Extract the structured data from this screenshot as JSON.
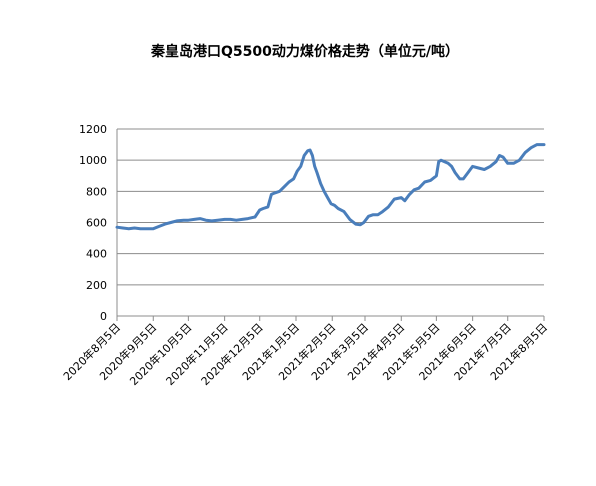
{
  "chart_data": {
    "type": "line",
    "title": "秦皇岛港口Q5500动力煤价格走势（单位元/吨）",
    "xlabel": "",
    "ylabel": "",
    "ylim": [
      0,
      1200
    ],
    "yticks": [
      0,
      200,
      400,
      600,
      800,
      1000,
      1200
    ],
    "xlim": [
      "2020-08-05",
      "2021-08-05"
    ],
    "x_tick_labels": [
      "2020年8月5日",
      "2020年9月5日",
      "2020年10月5日",
      "2020年11月5日",
      "2020年12月5日",
      "2021年1月5日",
      "2021年2月5日",
      "2021年3月5日",
      "2021年4月5日",
      "2021年5月5日",
      "2021年6月5日",
      "2021年7月5日",
      "2021年8月5日"
    ],
    "x_tick_dates": [
      "2020-08-05",
      "2020-09-05",
      "2020-10-05",
      "2020-11-05",
      "2020-12-05",
      "2021-01-05",
      "2021-02-05",
      "2021-03-05",
      "2021-04-05",
      "2021-05-05",
      "2021-06-05",
      "2021-07-05",
      "2021-08-05"
    ],
    "grid": true,
    "legend": false,
    "series_color": "#4a7ebb",
    "series": [
      {
        "x": [
          "2020-08-05",
          "2020-08-10",
          "2020-08-15",
          "2020-08-20",
          "2020-08-25",
          "2020-08-30",
          "2020-09-05",
          "2020-09-10",
          "2020-09-15",
          "2020-09-20",
          "2020-09-25",
          "2020-10-01",
          "2020-10-05",
          "2020-10-10",
          "2020-10-15",
          "2020-10-20",
          "2020-10-25",
          "2020-10-30",
          "2020-11-05",
          "2020-11-10",
          "2020-11-15",
          "2020-11-20",
          "2020-11-25",
          "2020-12-01",
          "2020-12-05",
          "2020-12-08",
          "2020-12-12",
          "2020-12-15",
          "2020-12-18",
          "2020-12-22",
          "2020-12-26",
          "2020-12-30",
          "2021-01-03",
          "2021-01-06",
          "2021-01-09",
          "2021-01-12",
          "2021-01-15",
          "2021-01-17",
          "2021-01-19",
          "2021-01-21",
          "2021-01-23",
          "2021-01-26",
          "2021-01-29",
          "2021-02-01",
          "2021-02-04",
          "2021-02-07",
          "2021-02-10",
          "2021-02-15",
          "2021-02-20",
          "2021-02-25",
          "2021-03-01",
          "2021-03-04",
          "2021-03-08",
          "2021-03-12",
          "2021-03-16",
          "2021-03-20",
          "2021-03-25",
          "2021-03-30",
          "2021-04-05",
          "2021-04-08",
          "2021-04-12",
          "2021-04-16",
          "2021-04-20",
          "2021-04-25",
          "2021-04-30",
          "2021-05-05",
          "2021-05-07",
          "2021-05-09",
          "2021-05-12",
          "2021-05-15",
          "2021-05-18",
          "2021-05-21",
          "2021-05-25",
          "2021-05-28",
          "2021-06-01",
          "2021-06-05",
          "2021-06-10",
          "2021-06-15",
          "2021-06-20",
          "2021-06-25",
          "2021-06-28",
          "2021-07-01",
          "2021-07-05",
          "2021-07-10",
          "2021-07-15",
          "2021-07-20",
          "2021-07-25",
          "2021-07-30",
          "2021-08-05"
        ],
        "y": [
          570,
          565,
          560,
          565,
          560,
          560,
          560,
          575,
          590,
          600,
          610,
          615,
          615,
          620,
          625,
          615,
          610,
          615,
          620,
          620,
          615,
          620,
          625,
          635,
          680,
          690,
          700,
          780,
          790,
          800,
          830,
          860,
          880,
          930,
          960,
          1030,
          1060,
          1065,
          1030,
          960,
          920,
          850,
          800,
          760,
          720,
          710,
          690,
          670,
          620,
          590,
          585,
          600,
          640,
          650,
          650,
          670,
          700,
          750,
          760,
          740,
          780,
          810,
          820,
          860,
          870,
          900,
          990,
          1000,
          990,
          980,
          960,
          920,
          880,
          880,
          920,
          960,
          950,
          940,
          960,
          990,
          1030,
          1020,
          980,
          980,
          1000,
          1050,
          1080,
          1100,
          1100
        ]
      }
    ]
  }
}
